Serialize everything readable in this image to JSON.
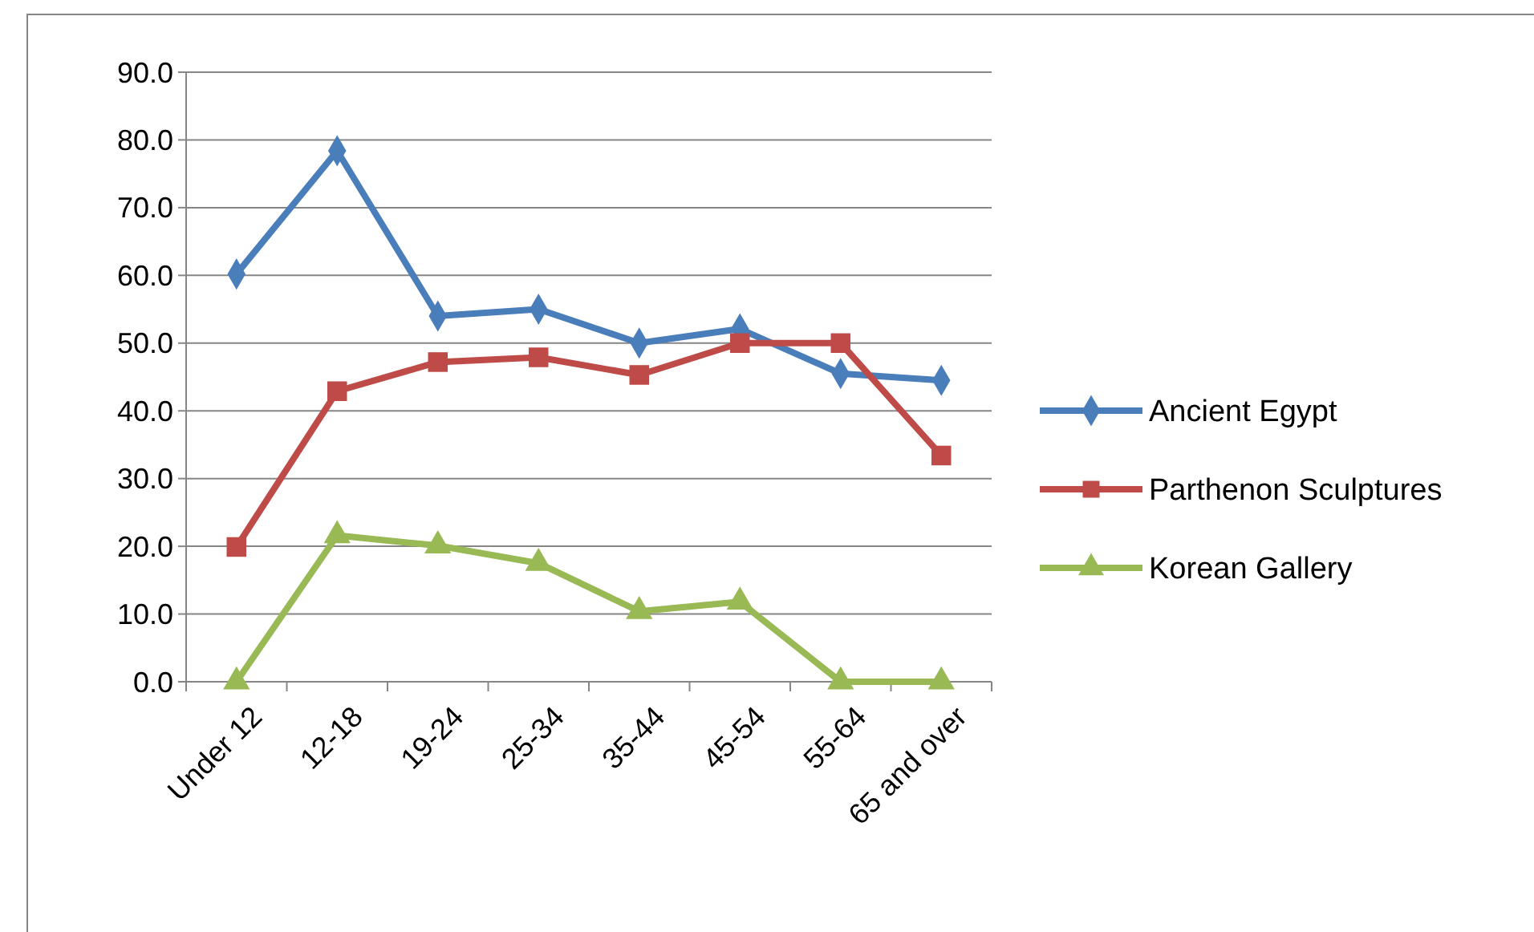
{
  "chart_data": {
    "type": "line",
    "categories": [
      "Under 12",
      "12-18",
      "19-24",
      "25-34",
      "35-44",
      "45-54",
      "55-64",
      "65 and over"
    ],
    "series": [
      {
        "name": "Ancient Egypt",
        "color": "#4a7ebb",
        "marker": "diamond",
        "values": [
          60.2,
          78.4,
          54.0,
          55.0,
          50.0,
          52.1,
          45.5,
          44.5
        ]
      },
      {
        "name": "Parthenon Sculptures",
        "color": "#be4b48",
        "marker": "square",
        "values": [
          19.9,
          42.9,
          47.2,
          47.9,
          45.3,
          50.0,
          50.0,
          33.4
        ]
      },
      {
        "name": "Korean Gallery",
        "color": "#98b954",
        "marker": "triangle",
        "values": [
          0,
          21.6,
          20.1,
          17.5,
          10.4,
          11.8,
          0,
          0
        ]
      }
    ],
    "ylim": [
      0,
      90
    ],
    "yticks": [
      {
        "value": 0,
        "label": "0.0"
      },
      {
        "value": 10,
        "label": "10.0"
      },
      {
        "value": 20,
        "label": "20.0"
      },
      {
        "value": 30,
        "label": "30.0"
      },
      {
        "value": 40,
        "label": "40.0"
      },
      {
        "value": 50,
        "label": "50.0"
      },
      {
        "value": 60,
        "label": "60.0"
      },
      {
        "value": 70,
        "label": "70.0"
      },
      {
        "value": 80,
        "label": "80.0"
      },
      {
        "value": 90,
        "label": "90.0"
      }
    ],
    "grid": "y",
    "legend": "right",
    "line_style": "solid"
  }
}
